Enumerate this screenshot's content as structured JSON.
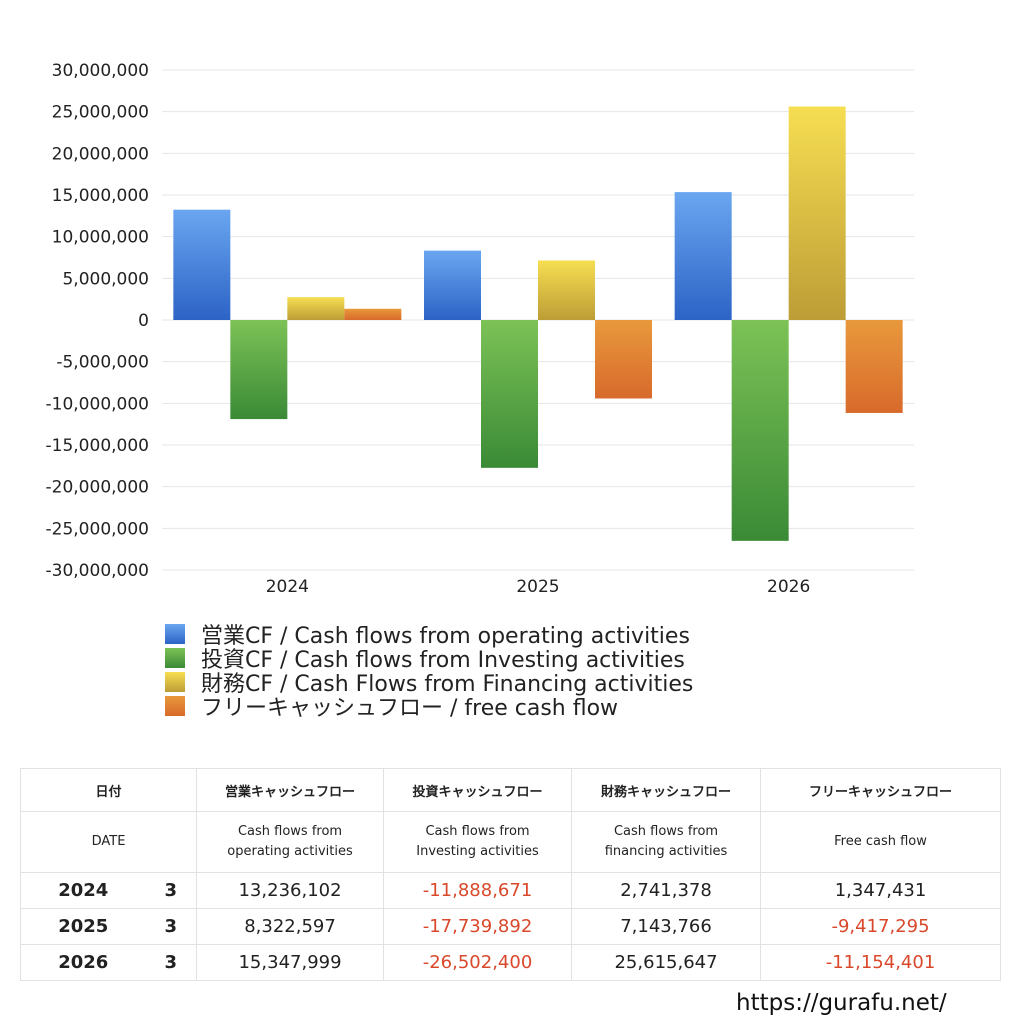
{
  "chart_data": {
    "type": "bar",
    "categories": [
      "2024",
      "2025",
      "2026"
    ],
    "series": [
      {
        "name": "営業CF / Cash flows from operating activities",
        "values": [
          13236102,
          8322597,
          15347999
        ],
        "color_top": "#6aa6f0",
        "color_bottom": "#2c63c6"
      },
      {
        "name": "投資CF / Cash flows from Investing activities",
        "values": [
          -11888671,
          -17739892,
          -26502400
        ],
        "color_top": "#7cc256",
        "color_bottom": "#3a8a36"
      },
      {
        "name": "財務CF / Cash Flows from Financing activities",
        "values": [
          2741378,
          7143766,
          25615647
        ],
        "color_top": "#f6de52",
        "color_bottom": "#bd9d36"
      },
      {
        "name": "フリーキャッシュフロー / free cash flow",
        "values": [
          1347431,
          -9417295,
          -11154401
        ],
        "color_top": "#e8993c",
        "color_bottom": "#d86a2b"
      }
    ],
    "ylim": [
      -30000000,
      30000000
    ],
    "yticks": [
      "30,000,000",
      "25,000,000",
      "20,000,000",
      "15,000,000",
      "10,000,000",
      "5,000,000",
      "0",
      "-5,000,000",
      "-10,000,000",
      "-15,000,000",
      "-20,000,000",
      "-25,000,000",
      "-30,000,000"
    ],
    "grid": true,
    "legend_position": "bottom"
  },
  "table": {
    "header_jp": [
      "日付",
      "営業キャッシュフロー",
      "投資キャッシュフロー",
      "財務キャッシュフロー",
      "フリーキャッシュフロー"
    ],
    "header_en": {
      "date": "DATE",
      "operating": [
        "Cash flows from",
        "operating activities"
      ],
      "investing": [
        "Cash flows from",
        "Investing activities"
      ],
      "financing": [
        "Cash flows from",
        "financing activities"
      ],
      "free": "Free cash flow"
    },
    "rows": [
      {
        "year": "2024",
        "month": "3",
        "operating": "13,236,102",
        "investing": "-11,888,671",
        "financing": "2,741,378",
        "free": "1,347,431"
      },
      {
        "year": "2025",
        "month": "3",
        "operating": "8,322,597",
        "investing": "-17,739,892",
        "financing": "7,143,766",
        "free": "-9,417,295"
      },
      {
        "year": "2026",
        "month": "3",
        "operating": "15,347,999",
        "investing": "-26,502,400",
        "financing": "25,615,647",
        "free": "-11,154,401"
      }
    ]
  },
  "site_url": "https://gurafu.net/",
  "colors": {
    "negative_text": "#d9482b",
    "grid": "#e6e6e6"
  }
}
